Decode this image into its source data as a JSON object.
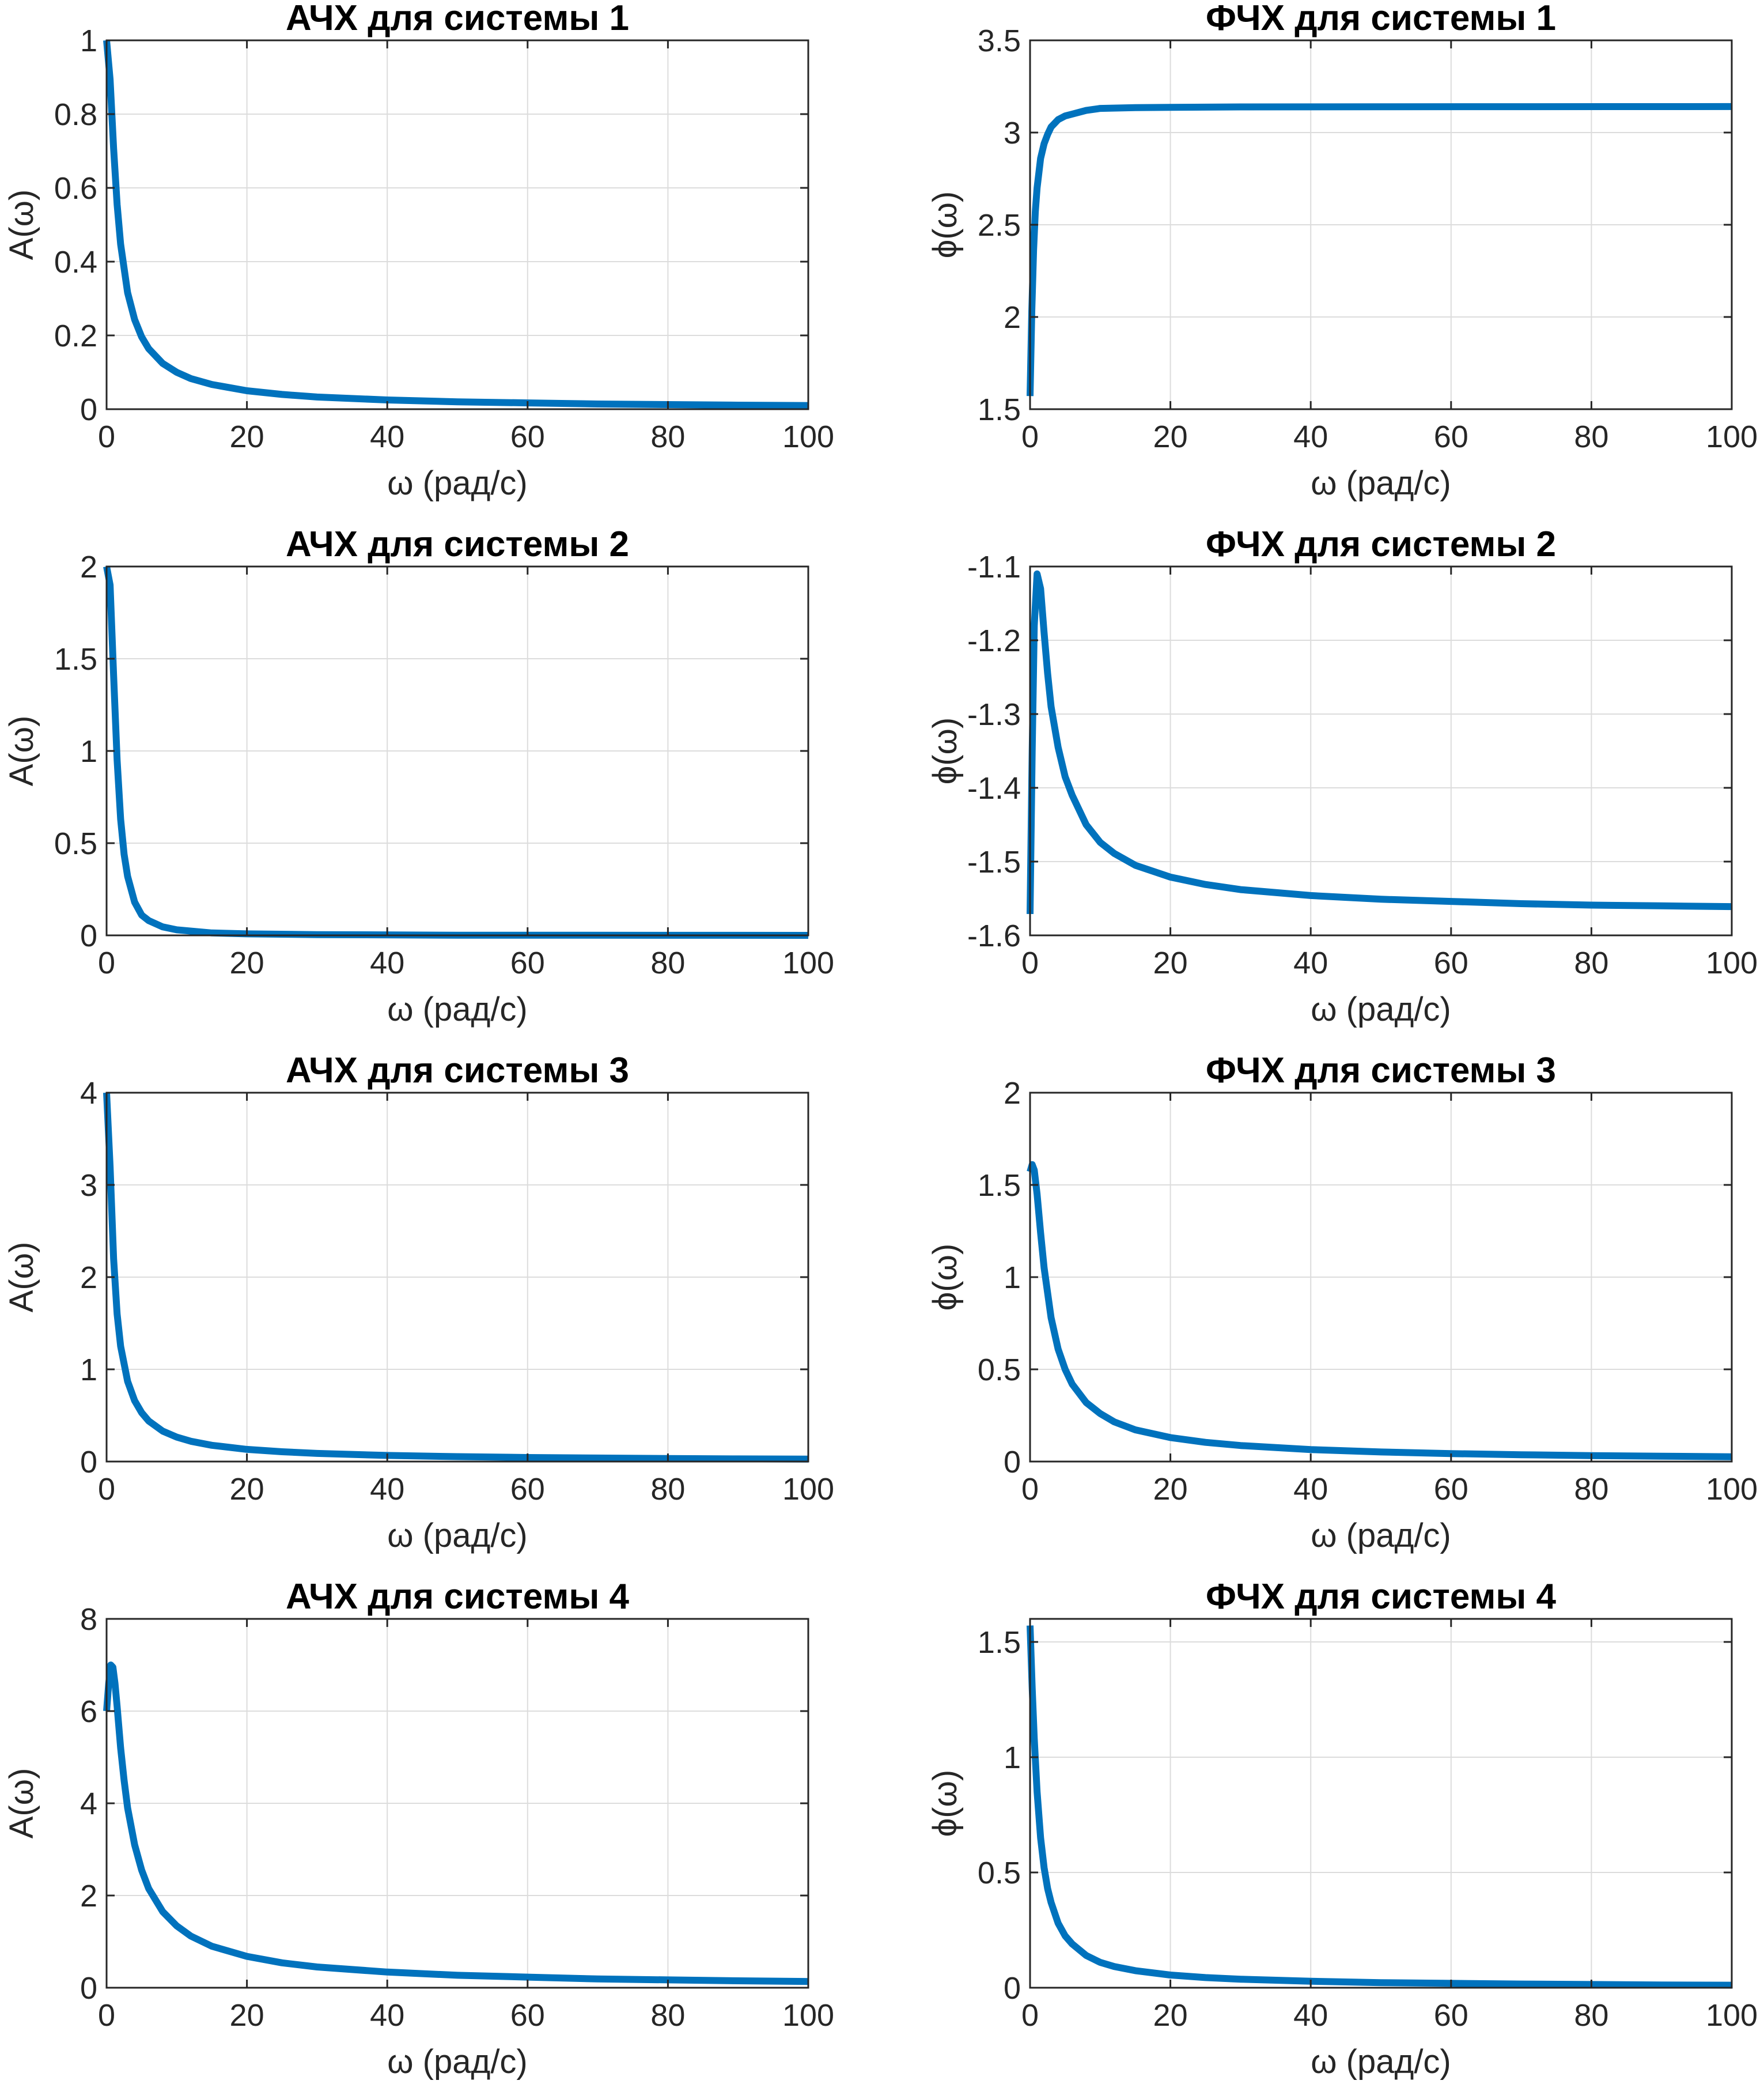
{
  "style": {
    "line_color": "#0072BD",
    "grid": true,
    "grid_color": "#dcdcdc",
    "axis_color": "#262626"
  },
  "chart_data": [
    {
      "type": "line",
      "title": "АЧХ для системы 1",
      "xlabel": "ω (рад/с)",
      "ylabel": "A(ω)",
      "xlim": [
        0,
        100
      ],
      "ylim": [
        0,
        1
      ],
      "xticks": [
        "0",
        "20",
        "40",
        "60",
        "80",
        "100"
      ],
      "yticks": [
        "0",
        "0.2",
        "0.4",
        "0.6",
        "0.8",
        "1"
      ],
      "series": [
        {
          "x": [
            0,
            0.5,
            1,
            1.5,
            2,
            3,
            4,
            5,
            6,
            8,
            10,
            12,
            15,
            20,
            25,
            30,
            40,
            50,
            60,
            70,
            80,
            90,
            100
          ],
          "y": [
            1,
            0.894,
            0.707,
            0.555,
            0.447,
            0.316,
            0.243,
            0.196,
            0.164,
            0.124,
            0.1,
            0.083,
            0.067,
            0.05,
            0.04,
            0.033,
            0.025,
            0.02,
            0.017,
            0.014,
            0.0125,
            0.011,
            0.01
          ]
        }
      ]
    },
    {
      "type": "line",
      "title": "ФЧХ для системы 1",
      "xlabel": "ω (рад/с)",
      "ylabel": "ϕ(ω)",
      "xlim": [
        0,
        100
      ],
      "ylim": [
        1.5,
        3.5
      ],
      "xticks": [
        "0",
        "20",
        "40",
        "60",
        "80",
        "100"
      ],
      "yticks": [
        "1.5",
        "2",
        "2.5",
        "3",
        "3.5"
      ],
      "series": [
        {
          "x": [
            0,
            0.25,
            0.5,
            0.75,
            1,
            1.5,
            2,
            2.5,
            3,
            4,
            5,
            6,
            8,
            10,
            15,
            20,
            30,
            50,
            100
          ],
          "y": [
            1.571,
            2.03,
            2.36,
            2.57,
            2.7,
            2.86,
            2.94,
            2.99,
            3.03,
            3.07,
            3.09,
            3.1,
            3.12,
            3.131,
            3.135,
            3.137,
            3.139,
            3.14,
            3.141
          ]
        }
      ]
    },
    {
      "type": "line",
      "title": "АЧХ для системы 2",
      "xlabel": "ω (рад/с)",
      "ylabel": "A(ω)",
      "xlim": [
        0,
        100
      ],
      "ylim": [
        0,
        2
      ],
      "xticks": [
        "0",
        "20",
        "40",
        "60",
        "80",
        "100"
      ],
      "yticks": [
        "0",
        "0.5",
        "1",
        "1.5",
        "2"
      ],
      "series": [
        {
          "x": [
            0,
            0.5,
            1,
            1.5,
            2,
            2.5,
            3,
            4,
            5,
            6,
            8,
            10,
            15,
            20,
            30,
            50,
            100
          ],
          "y": [
            2,
            1.9,
            1.41,
            0.95,
            0.63,
            0.44,
            0.32,
            0.18,
            0.11,
            0.08,
            0.046,
            0.03,
            0.013,
            0.008,
            0.004,
            0.001,
            0
          ]
        }
      ]
    },
    {
      "type": "line",
      "title": "ФЧХ для системы 2",
      "xlabel": "ω (рад/с)",
      "ylabel": "ϕ(ω)",
      "xlim": [
        0,
        100
      ],
      "ylim": [
        -1.6,
        -1.1
      ],
      "xticks": [
        "0",
        "20",
        "40",
        "60",
        "80",
        "100"
      ],
      "yticks": [
        "-1.6",
        "-1.5",
        "-1.4",
        "-1.3",
        "-1.2",
        "-1.1"
      ],
      "series": [
        {
          "x": [
            0,
            0.3,
            0.6,
            1,
            1.5,
            2,
            2.5,
            3,
            4,
            5,
            6,
            8,
            10,
            12,
            15,
            20,
            25,
            30,
            40,
            50,
            60,
            70,
            80,
            90,
            100
          ],
          "y": [
            -1.571,
            -1.35,
            -1.18,
            -1.11,
            -1.13,
            -1.19,
            -1.245,
            -1.29,
            -1.345,
            -1.385,
            -1.41,
            -1.45,
            -1.474,
            -1.489,
            -1.505,
            -1.521,
            -1.531,
            -1.538,
            -1.546,
            -1.551,
            -1.554,
            -1.557,
            -1.559,
            -1.56,
            -1.561
          ]
        }
      ]
    },
    {
      "type": "line",
      "title": "АЧХ для системы 3",
      "xlabel": "ω (рад/с)",
      "ylabel": "A(ω)",
      "xlim": [
        0,
        100
      ],
      "ylim": [
        0,
        4
      ],
      "xticks": [
        "0",
        "20",
        "40",
        "60",
        "80",
        "100"
      ],
      "yticks": [
        "0",
        "1",
        "2",
        "3",
        "4"
      ],
      "series": [
        {
          "x": [
            0,
            0.5,
            1,
            1.5,
            2,
            3,
            4,
            5,
            6,
            8,
            10,
            12,
            15,
            20,
            25,
            30,
            40,
            50,
            60,
            70,
            80,
            90,
            100
          ],
          "y": [
            4,
            3.2,
            2.2,
            1.6,
            1.25,
            0.87,
            0.66,
            0.53,
            0.44,
            0.33,
            0.265,
            0.22,
            0.176,
            0.132,
            0.106,
            0.088,
            0.066,
            0.053,
            0.044,
            0.038,
            0.033,
            0.029,
            0.026
          ]
        }
      ]
    },
    {
      "type": "line",
      "title": "ФЧХ для системы 3",
      "xlabel": "ω (рад/с)",
      "ylabel": "ϕ(ω)",
      "xlim": [
        0,
        100
      ],
      "ylim": [
        0,
        2
      ],
      "xticks": [
        "0",
        "20",
        "40",
        "60",
        "80",
        "100"
      ],
      "yticks": [
        "0",
        "0.5",
        "1",
        "1.5",
        "2"
      ],
      "series": [
        {
          "x": [
            0,
            0.3,
            0.6,
            1,
            1.5,
            2,
            3,
            4,
            5,
            6,
            8,
            10,
            12,
            15,
            20,
            25,
            30,
            40,
            50,
            60,
            70,
            80,
            90,
            100
          ],
          "y": [
            1.571,
            1.61,
            1.58,
            1.45,
            1.24,
            1.05,
            0.78,
            0.61,
            0.5,
            0.42,
            0.32,
            0.26,
            0.215,
            0.172,
            0.13,
            0.104,
            0.087,
            0.065,
            0.052,
            0.043,
            0.037,
            0.032,
            0.029,
            0.026
          ]
        }
      ]
    },
    {
      "type": "line",
      "title": "АЧХ для системы 4",
      "xlabel": "ω (рад/с)",
      "ylabel": "A(ω)",
      "xlim": [
        0,
        100
      ],
      "ylim": [
        0,
        8
      ],
      "xticks": [
        "0",
        "20",
        "40",
        "60",
        "80",
        "100"
      ],
      "yticks": [
        "0",
        "2",
        "4",
        "6",
        "8"
      ],
      "series": [
        {
          "x": [
            0,
            0.3,
            0.6,
            0.9,
            1.2,
            1.5,
            2,
            2.5,
            3,
            4,
            5,
            6,
            8,
            10,
            12,
            15,
            20,
            25,
            30,
            40,
            50,
            60,
            70,
            80,
            90,
            100
          ],
          "y": [
            6.0,
            6.6,
            7.0,
            6.95,
            6.6,
            6.1,
            5.2,
            4.5,
            3.9,
            3.1,
            2.55,
            2.15,
            1.65,
            1.34,
            1.12,
            0.9,
            0.68,
            0.54,
            0.45,
            0.34,
            0.27,
            0.23,
            0.19,
            0.17,
            0.15,
            0.135
          ]
        }
      ]
    },
    {
      "type": "line",
      "title": "ФЧХ для системы 4",
      "xlabel": "ω (рад/с)",
      "ylabel": "ϕ(ω)",
      "xlim": [
        0,
        100
      ],
      "ylim": [
        0,
        1.6
      ],
      "xticks": [
        "0",
        "20",
        "40",
        "60",
        "80",
        "100"
      ],
      "yticks": [
        "0",
        "0.5",
        "1",
        "1.5"
      ],
      "series": [
        {
          "x": [
            0,
            0.3,
            0.6,
            1,
            1.5,
            2,
            2.5,
            3,
            4,
            5,
            6,
            8,
            10,
            12,
            15,
            20,
            25,
            30,
            40,
            50,
            60,
            70,
            80,
            90,
            100
          ],
          "y": [
            1.571,
            1.3,
            1.08,
            0.85,
            0.65,
            0.52,
            0.43,
            0.37,
            0.28,
            0.225,
            0.19,
            0.14,
            0.11,
            0.092,
            0.074,
            0.055,
            0.044,
            0.037,
            0.028,
            0.022,
            0.019,
            0.016,
            0.014,
            0.012,
            0.011
          ]
        }
      ]
    }
  ]
}
